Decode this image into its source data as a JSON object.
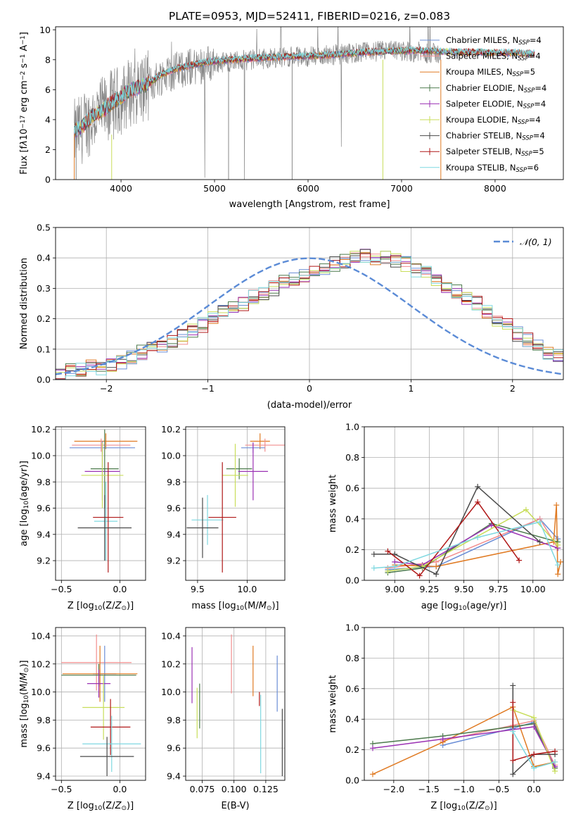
{
  "figure": {
    "title": "PLATE=0953, MJD=52411, FIBERID=0216, z=0.083",
    "colors": {
      "Chabrier MILES": "#6b8ed6",
      "Salpeter MILES": "#f28e8e",
      "Kroupa MILES": "#e07b24",
      "Chabrier ELODIE": "#4c7a4c",
      "Salpeter ELODIE": "#9b32b4",
      "Kroupa ELODIE": "#c8dd5a",
      "Chabrier STELIB": "#4a4a4a",
      "Salpeter STELIB": "#b01818",
      "Kroupa STELIB": "#7fd8e0"
    }
  },
  "chart_data": [
    {
      "id": "spectrum",
      "type": "line",
      "title": "",
      "xlabel": "wavelength [Angstrom, rest frame]",
      "ylabel": "Flux [f_λ10^-17 erg cm^-2 s^-1 A^-1]",
      "xlim": [
        3300,
        8730
      ],
      "ylim": [
        0,
        10.2
      ],
      "xticks": [
        4000,
        5000,
        6000,
        7000,
        8000
      ],
      "yticks": [
        0,
        2,
        4,
        6,
        8,
        10
      ],
      "legend_position": "top-right",
      "legend": [
        {
          "base": "Chabrier MILES, N",
          "sub": "SSP",
          "tail": "=4"
        },
        {
          "base": "Salpeter MILES, N",
          "sub": "SSP",
          "tail": "=4"
        },
        {
          "base": "Kroupa MILES, N",
          "sub": "SSP",
          "tail": "=5"
        },
        {
          "base": "Chabrier ELODIE, N",
          "sub": "SSP",
          "tail": "=4"
        },
        {
          "base": "Salpeter ELODIE, N",
          "sub": "SSP",
          "tail": "=4"
        },
        {
          "base": "Kroupa ELODIE, N",
          "sub": "SSP",
          "tail": "=4"
        },
        {
          "base": "Chabrier STELIB, N",
          "sub": "SSP",
          "tail": "=4"
        },
        {
          "base": "Salpeter STELIB, N",
          "sub": "SSP",
          "tail": "=5"
        },
        {
          "base": "Kroupa STELIB, N",
          "sub": "SSP",
          "tail": "=6"
        }
      ],
      "data_series": {
        "name": "data",
        "x": [
          3500,
          3600,
          3700,
          3800,
          3900,
          4000,
          4100,
          4200,
          4300,
          4400,
          4500,
          4600,
          4800,
          5000,
          5200,
          5400,
          5600,
          5800,
          6000,
          6200,
          6400,
          6600,
          6800,
          7000,
          7200,
          7400
        ],
        "y": [
          3.0,
          3.5,
          4.2,
          4.5,
          5.0,
          5.3,
          5.9,
          6.1,
          6.3,
          6.8,
          7.1,
          7.3,
          7.6,
          7.8,
          7.9,
          8.0,
          8.1,
          8.2,
          8.2,
          8.3,
          8.4,
          8.5,
          8.6,
          8.6,
          8.5,
          8.4
        ]
      },
      "model_series": {
        "x": [
          3500,
          3600,
          3700,
          3800,
          3900,
          4000,
          4100,
          4200,
          4300,
          4400,
          4500,
          4600,
          4800,
          5000,
          5200,
          5400,
          5600,
          5800,
          6000,
          6200,
          6400,
          6600,
          6800,
          7000,
          7200,
          7400,
          7600,
          7800,
          8000,
          8200,
          8400
        ],
        "y": [
          3.2,
          3.6,
          4.3,
          4.6,
          5.1,
          5.5,
          6.0,
          6.2,
          6.4,
          6.9,
          7.2,
          7.4,
          7.7,
          7.9,
          8.0,
          8.1,
          8.15,
          8.2,
          8.25,
          8.3,
          8.4,
          8.5,
          8.55,
          8.6,
          8.6,
          8.55,
          8.5,
          8.5,
          8.45,
          8.45,
          8.4
        ]
      }
    },
    {
      "id": "residuals",
      "type": "bar",
      "title": "",
      "xlabel": "(data-model)/error",
      "ylabel": "Normed distribution",
      "xlim": [
        -2.5,
        2.5
      ],
      "ylim": [
        0,
        0.5
      ],
      "xticks": [
        -2,
        -1,
        0,
        1,
        2
      ],
      "xtick_labels": [
        "−2",
        "−1",
        "0",
        "1",
        "2"
      ],
      "yticks": [
        0,
        0.1,
        0.2,
        0.3,
        0.4,
        0.5
      ],
      "ytick_labels": [
        "0.0",
        "0.1",
        "0.2",
        "0.3",
        "0.4",
        "0.5"
      ],
      "legend_position": "top-right",
      "legend": [
        "𝒩(0, 1)"
      ],
      "bin_width": 0.1,
      "bins_start": -2.5,
      "base_hist": [
        0.02,
        0.03,
        0.03,
        0.04,
        0.04,
        0.05,
        0.06,
        0.07,
        0.09,
        0.1,
        0.11,
        0.12,
        0.14,
        0.16,
        0.18,
        0.2,
        0.22,
        0.24,
        0.25,
        0.27,
        0.28,
        0.3,
        0.32,
        0.33,
        0.34,
        0.36,
        0.37,
        0.38,
        0.39,
        0.4,
        0.41,
        0.4,
        0.4,
        0.39,
        0.38,
        0.36,
        0.35,
        0.33,
        0.31,
        0.29,
        0.27,
        0.25,
        0.22,
        0.2,
        0.18,
        0.15,
        0.13,
        0.11,
        0.09,
        0.08,
        0.07,
        0.06,
        0.05,
        0.04,
        0.04,
        0.03,
        0.03,
        0.03,
        0.02,
        0.02
      ]
    },
    {
      "id": "age_vs_Z",
      "type": "scatter",
      "xlabel": "Z [log10(Z/Z⊙)]",
      "ylabel": "age  [log10(age/yr)]",
      "xlim": [
        -0.55,
        0.22
      ],
      "ylim": [
        9.05,
        10.22
      ],
      "xticks": [
        -0.5,
        0.0
      ],
      "xtick_labels": [
        "−0.5",
        "0.0"
      ],
      "yticks": [
        9.2,
        9.4,
        9.6,
        9.8,
        10.0,
        10.2
      ],
      "ytick_labels": [
        "9.2",
        "9.4",
        "9.6",
        "9.8",
        "10.0",
        "10.2"
      ],
      "points": [
        {
          "model": "Kroupa MILES",
          "x": -0.12,
          "xerr": 0.27,
          "y": 10.11,
          "yerr": 0.06
        },
        {
          "model": "Chabrier MILES",
          "x": -0.15,
          "xerr": 0.28,
          "y": 10.06,
          "yerr": 0.05
        },
        {
          "model": "Salpeter MILES",
          "x": -0.16,
          "xerr": 0.25,
          "y": 10.08,
          "yerr": 0.05
        },
        {
          "model": "Salpeter ELODIE",
          "x": -0.15,
          "xerr": 0.15,
          "y": 9.88,
          "yerr": 0.22
        },
        {
          "model": "Chabrier ELODIE",
          "x": -0.13,
          "xerr": 0.12,
          "y": 9.9,
          "yerr": 0.3
        },
        {
          "model": "Kroupa ELODIE",
          "x": -0.15,
          "xerr": 0.18,
          "y": 9.85,
          "yerr": 0.25
        },
        {
          "model": "Kroupa STELIB",
          "x": -0.12,
          "xerr": 0.1,
          "y": 9.5,
          "yerr": 0.3
        },
        {
          "model": "Salpeter STELIB",
          "x": -0.1,
          "xerr": 0.13,
          "y": 9.53,
          "yerr": 0.42
        },
        {
          "model": "Chabrier STELIB",
          "x": -0.13,
          "xerr": 0.23,
          "y": 9.45,
          "yerr": 0.25
        }
      ]
    },
    {
      "id": "age_vs_mass",
      "type": "scatter",
      "xlabel": "mass [log10(M/M⊙)]",
      "ylabel": "",
      "xlim": [
        9.38,
        10.38
      ],
      "ylim": [
        9.05,
        10.22
      ],
      "xticks": [
        9.5,
        10.0
      ],
      "xtick_labels": [
        "9.5",
        "10.0"
      ],
      "yticks": [
        9.2,
        9.4,
        9.6,
        9.8,
        10.0,
        10.2
      ],
      "ytick_labels": [
        "9.2",
        "9.4",
        "9.6",
        "9.8",
        "10.0",
        "10.2"
      ],
      "points": [
        {
          "model": "Kroupa MILES",
          "x": 10.13,
          "xerr": 0.1,
          "y": 10.11,
          "yerr": 0.06
        },
        {
          "model": "Salpeter MILES",
          "x": 10.18,
          "xerr": 0.2,
          "y": 10.08,
          "yerr": 0.05
        },
        {
          "model": "Chabrier MILES",
          "x": 10.06,
          "xerr": 0.12,
          "y": 10.06,
          "yerr": 0.04
        },
        {
          "model": "Chabrier ELODIE",
          "x": 9.92,
          "xerr": 0.13,
          "y": 9.9,
          "yerr": 0.08
        },
        {
          "model": "Salpeter ELODIE",
          "x": 10.06,
          "xerr": 0.15,
          "y": 9.88,
          "yerr": 0.22
        },
        {
          "model": "Kroupa ELODIE",
          "x": 9.88,
          "xerr": 0.13,
          "y": 9.85,
          "yerr": 0.24
        },
        {
          "model": "Kroupa STELIB",
          "x": 9.6,
          "xerr": 0.16,
          "y": 9.51,
          "yerr": 0.19
        },
        {
          "model": "Salpeter STELIB",
          "x": 9.75,
          "xerr": 0.14,
          "y": 9.53,
          "yerr": 0.42
        },
        {
          "model": "Chabrier STELIB",
          "x": 9.55,
          "xerr": 0.16,
          "y": 9.45,
          "yerr": 0.23
        }
      ]
    },
    {
      "id": "mass_weight_vs_age",
      "type": "line",
      "xlabel": "age  [log10(age/yr)]",
      "ylabel": "mass weight",
      "xlim": [
        8.78,
        10.22
      ],
      "ylim": [
        0,
        1.0
      ],
      "xticks": [
        9.0,
        9.25,
        9.5,
        9.75,
        10.0
      ],
      "xtick_labels": [
        "9.00",
        "9.25",
        "9.50",
        "9.75",
        "10.00"
      ],
      "yticks": [
        0,
        0.2,
        0.4,
        0.6,
        0.8,
        1.0
      ],
      "ytick_labels": [
        "0.0",
        "0.2",
        "0.4",
        "0.6",
        "0.8",
        "1.0"
      ],
      "series": [
        {
          "model": "Chabrier MILES",
          "x": [
            8.95,
            9.3,
            10.05,
            10.18
          ],
          "y": [
            0.07,
            0.09,
            0.4,
            0.27
          ]
        },
        {
          "model": "Salpeter MILES",
          "x": [
            8.95,
            9.3,
            10.05,
            10.18
          ],
          "y": [
            0.08,
            0.12,
            0.4,
            0.21
          ]
        },
        {
          "model": "Kroupa MILES",
          "x": [
            9.0,
            9.3,
            10.15,
            10.17,
            10.18,
            10.2
          ],
          "y": [
            0.1,
            0.09,
            0.25,
            0.49,
            0.04,
            0.12
          ]
        },
        {
          "model": "Chabrier ELODIE",
          "x": [
            8.95,
            9.2,
            9.7,
            10.18
          ],
          "y": [
            0.05,
            0.08,
            0.37,
            0.25
          ]
        },
        {
          "model": "Salpeter ELODIE",
          "x": [
            9.0,
            9.2,
            9.7,
            10.18
          ],
          "y": [
            0.12,
            0.1,
            0.36,
            0.21
          ]
        },
        {
          "model": "Kroupa ELODIE",
          "x": [
            8.95,
            9.2,
            9.95,
            10.18
          ],
          "y": [
            0.06,
            0.09,
            0.46,
            0.23
          ]
        },
        {
          "model": "Chabrier STELIB",
          "x": [
            8.85,
            9.0,
            9.3,
            9.6,
            10.05
          ],
          "y": [
            0.17,
            0.17,
            0.04,
            0.61,
            0.25
          ]
        },
        {
          "model": "Salpeter STELIB",
          "x": [
            8.95,
            9.18,
            9.6,
            9.9
          ],
          "y": [
            0.19,
            0.03,
            0.51,
            0.13
          ]
        },
        {
          "model": "Kroupa STELIB",
          "x": [
            8.85,
            9.0,
            9.6,
            10.05,
            10.18
          ],
          "y": [
            0.08,
            0.09,
            0.28,
            0.38,
            0.1
          ]
        }
      ]
    },
    {
      "id": "mass_vs_Z",
      "type": "scatter",
      "xlabel": "Z [log10(Z/Z⊙)]",
      "ylabel": "mass [log10(M/M⊙)]",
      "xlim": [
        -0.55,
        0.22
      ],
      "ylim": [
        9.37,
        10.46
      ],
      "xticks": [
        -0.5,
        0.0
      ],
      "xtick_labels": [
        "−0.5",
        "0.0"
      ],
      "yticks": [
        9.4,
        9.6,
        9.8,
        10.0,
        10.2,
        10.4
      ],
      "ytick_labels": [
        "9.4",
        "9.6",
        "9.8",
        "10.0",
        "10.2",
        "10.4"
      ],
      "points": [
        {
          "model": "Salpeter MILES",
          "x": -0.2,
          "xerr": 0.3,
          "y": 10.21,
          "yerr": 0.2
        },
        {
          "model": "Chabrier MILES",
          "x": -0.13,
          "xerr": 0.1,
          "y": 10.13,
          "yerr": 0.2
        },
        {
          "model": "Kroupa MILES",
          "x": -0.17,
          "xerr": 0.32,
          "y": 10.13,
          "yerr": 0.2
        },
        {
          "model": "Chabrier ELODIE",
          "x": -0.18,
          "xerr": 0.32,
          "y": 10.12,
          "yerr": 0.08
        },
        {
          "model": "Salpeter ELODIE",
          "x": -0.18,
          "xerr": 0.1,
          "y": 10.06,
          "yerr": 0.1
        },
        {
          "model": "Kroupa ELODIE",
          "x": -0.14,
          "xerr": 0.18,
          "y": 9.89,
          "yerr": 0.23
        },
        {
          "model": "Salpeter STELIB",
          "x": -0.08,
          "xerr": 0.17,
          "y": 9.75,
          "yerr": 0.2
        },
        {
          "model": "Kroupa STELIB",
          "x": -0.07,
          "xerr": 0.25,
          "y": 9.63,
          "yerr": 0.2
        },
        {
          "model": "Chabrier STELIB",
          "x": -0.11,
          "xerr": 0.23,
          "y": 9.54,
          "yerr": 0.14
        }
      ]
    },
    {
      "id": "mass_vs_ebv",
      "type": "scatter",
      "xlabel": "E(B-V)",
      "ylabel": "",
      "xlim": [
        0.062,
        0.14
      ],
      "ylim": [
        9.37,
        10.46
      ],
      "xticks": [
        0.075,
        0.1,
        0.125
      ],
      "xtick_labels": [
        "0.075",
        "0.100",
        "0.125"
      ],
      "yticks": [
        9.4,
        9.6,
        9.8,
        10.0,
        10.2,
        10.4
      ],
      "ytick_labels": [
        "9.4",
        "9.6",
        "9.8",
        "10.0",
        "10.2",
        "10.4"
      ],
      "points": [
        {
          "model": "Salpeter ELODIE",
          "x": 0.067,
          "y": 10.12,
          "yerr": 0.2
        },
        {
          "model": "Kroupa ELODIE",
          "x": 0.071,
          "y": 9.85,
          "yerr": 0.18
        },
        {
          "model": "Chabrier ELODIE",
          "x": 0.073,
          "y": 9.9,
          "yerr": 0.16
        },
        {
          "model": "Salpeter MILES",
          "x": 0.098,
          "y": 10.2,
          "yerr": 0.21
        },
        {
          "model": "Kroupa MILES",
          "x": 0.115,
          "y": 10.15,
          "yerr": 0.18
        },
        {
          "model": "Salpeter STELIB",
          "x": 0.12,
          "y": 9.95,
          "yerr": 0.05
        },
        {
          "model": "Kroupa STELIB",
          "x": 0.121,
          "y": 9.7,
          "yerr": 0.28
        },
        {
          "model": "Chabrier MILES",
          "x": 0.134,
          "y": 10.06,
          "yerr": 0.2
        },
        {
          "model": "Chabrier STELIB",
          "x": 0.138,
          "y": 9.64,
          "yerr": 0.24
        }
      ]
    },
    {
      "id": "mass_weight_vs_Z",
      "type": "line",
      "xlabel": "Z [log10(Z/Z⊙)]",
      "ylabel": "mass weight",
      "xlim": [
        -2.42,
        0.42
      ],
      "ylim": [
        0,
        1.0
      ],
      "xticks": [
        -2.0,
        -1.5,
        -1.0,
        -0.5,
        0.0
      ],
      "xtick_labels": [
        "−2.0",
        "−1.5",
        "−1.0",
        "−0.5",
        "0.0"
      ],
      "yticks": [
        0,
        0.2,
        0.4,
        0.6,
        0.8,
        1.0
      ],
      "ytick_labels": [
        "0.0",
        "0.2",
        "0.4",
        "0.6",
        "0.8",
        "1.0"
      ],
      "series": [
        {
          "model": "Chabrier MILES",
          "x": [
            -1.3,
            -0.3,
            0.0,
            0.3
          ],
          "y": [
            0.23,
            0.34,
            0.38,
            0.09
          ]
        },
        {
          "model": "Salpeter MILES",
          "x": [
            -1.3,
            -0.3,
            0.0,
            0.3
          ],
          "y": [
            0.26,
            0.36,
            0.39,
            0.1
          ]
        },
        {
          "model": "Kroupa MILES",
          "x": [
            -2.3,
            -1.3,
            -0.3,
            0.0,
            0.3
          ],
          "y": [
            0.04,
            0.25,
            0.48,
            0.09,
            0.12
          ]
        },
        {
          "model": "Chabrier ELODIE",
          "x": [
            -2.3,
            -1.3,
            0.0,
            0.3
          ],
          "y": [
            0.24,
            0.29,
            0.37,
            0.08
          ]
        },
        {
          "model": "Salpeter ELODIE",
          "x": [
            -2.3,
            -1.3,
            0.0,
            0.3
          ],
          "y": [
            0.21,
            0.27,
            0.35,
            0.09
          ]
        },
        {
          "model": "Kroupa ELODIE",
          "x": [
            -0.3,
            0.0,
            0.3
          ],
          "y": [
            0.46,
            0.41,
            0.06
          ]
        },
        {
          "model": "Chabrier STELIB",
          "x": [
            -0.3,
            -0.3,
            0.0,
            0.3
          ],
          "y": [
            0.62,
            0.04,
            0.17,
            0.17
          ]
        },
        {
          "model": "Salpeter STELIB",
          "x": [
            -0.3,
            -0.3,
            0.0,
            0.3
          ],
          "y": [
            0.51,
            0.13,
            0.17,
            0.19
          ]
        },
        {
          "model": "Kroupa STELIB",
          "x": [
            -0.3,
            0.0,
            0.3
          ],
          "y": [
            0.32,
            0.08,
            0.12
          ]
        }
      ]
    }
  ]
}
